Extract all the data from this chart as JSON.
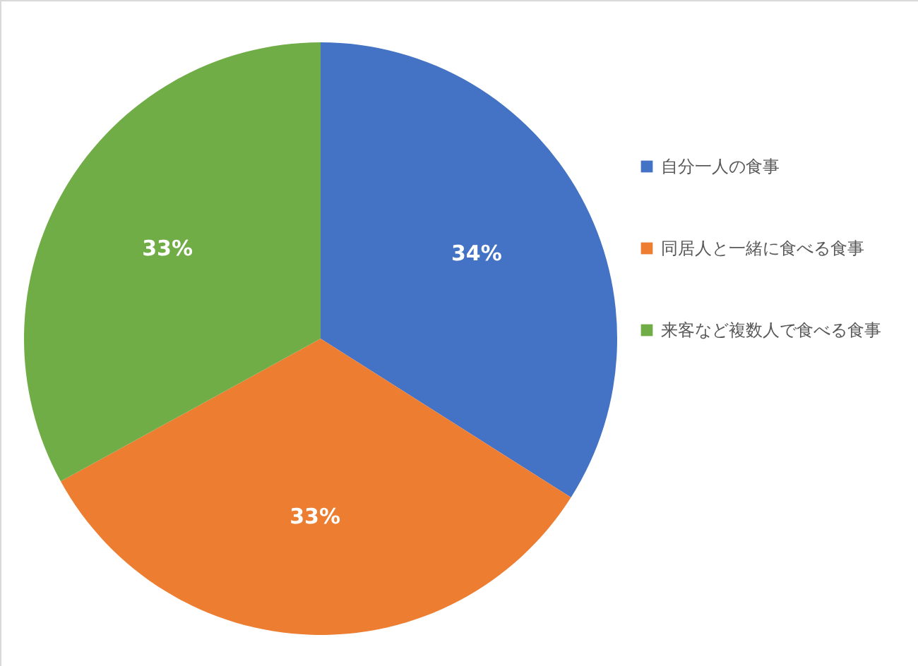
{
  "chart_data": {
    "type": "pie",
    "categories": [
      "自分一人の食事",
      "同居人と一緒に食べる食事",
      "来客など複数人で食べる食事"
    ],
    "values": [
      34,
      33,
      33
    ],
    "colors": [
      "#4472c4",
      "#ed7d31",
      "#70ad47"
    ],
    "value_labels": [
      "34%",
      "33%",
      "33%"
    ],
    "legend": "right"
  }
}
